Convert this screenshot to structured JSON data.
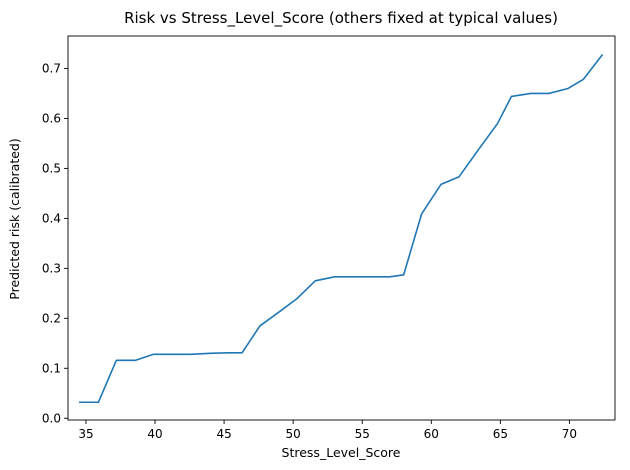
{
  "chart_data": {
    "type": "line",
    "title": "Risk vs Stress_Level_Score (others fixed at typical values)",
    "xlabel": "Stress_Level_Score",
    "ylabel": "Predicted risk (calibrated)",
    "xlim": [
      33.7,
      73.3
    ],
    "ylim": [
      -0.0035,
      0.765
    ],
    "xticks": [
      35,
      40,
      45,
      50,
      55,
      60,
      65,
      70
    ],
    "yticks": [
      0.0,
      0.1,
      0.2,
      0.3,
      0.4,
      0.5,
      0.6,
      0.7
    ],
    "xtick_labels": [
      "35",
      "40",
      "45",
      "50",
      "55",
      "60",
      "65",
      "70"
    ],
    "ytick_labels": [
      "0.0",
      "0.1",
      "0.2",
      "0.3",
      "0.4",
      "0.5",
      "0.6",
      "0.7"
    ],
    "grid": false,
    "series": [
      {
        "color": "#1f77b4",
        "x": [
          34.5,
          35.9,
          37.2,
          38.6,
          39.9,
          41.3,
          42.6,
          44.0,
          45.3,
          46.3,
          47.6,
          49.0,
          50.3,
          51.6,
          53.0,
          54.3,
          55.6,
          57.0,
          58.0,
          59.3,
          60.7,
          62.0,
          63.4,
          64.8,
          65.8,
          67.2,
          68.5,
          69.9,
          71.0,
          72.4
        ],
        "y": [
          0.032,
          0.032,
          0.116,
          0.116,
          0.128,
          0.128,
          0.128,
          0.13,
          0.131,
          0.131,
          0.185,
          0.213,
          0.24,
          0.275,
          0.283,
          0.283,
          0.283,
          0.283,
          0.287,
          0.409,
          0.468,
          0.483,
          0.537,
          0.59,
          0.644,
          0.65,
          0.65,
          0.66,
          0.678,
          0.728
        ]
      }
    ]
  }
}
